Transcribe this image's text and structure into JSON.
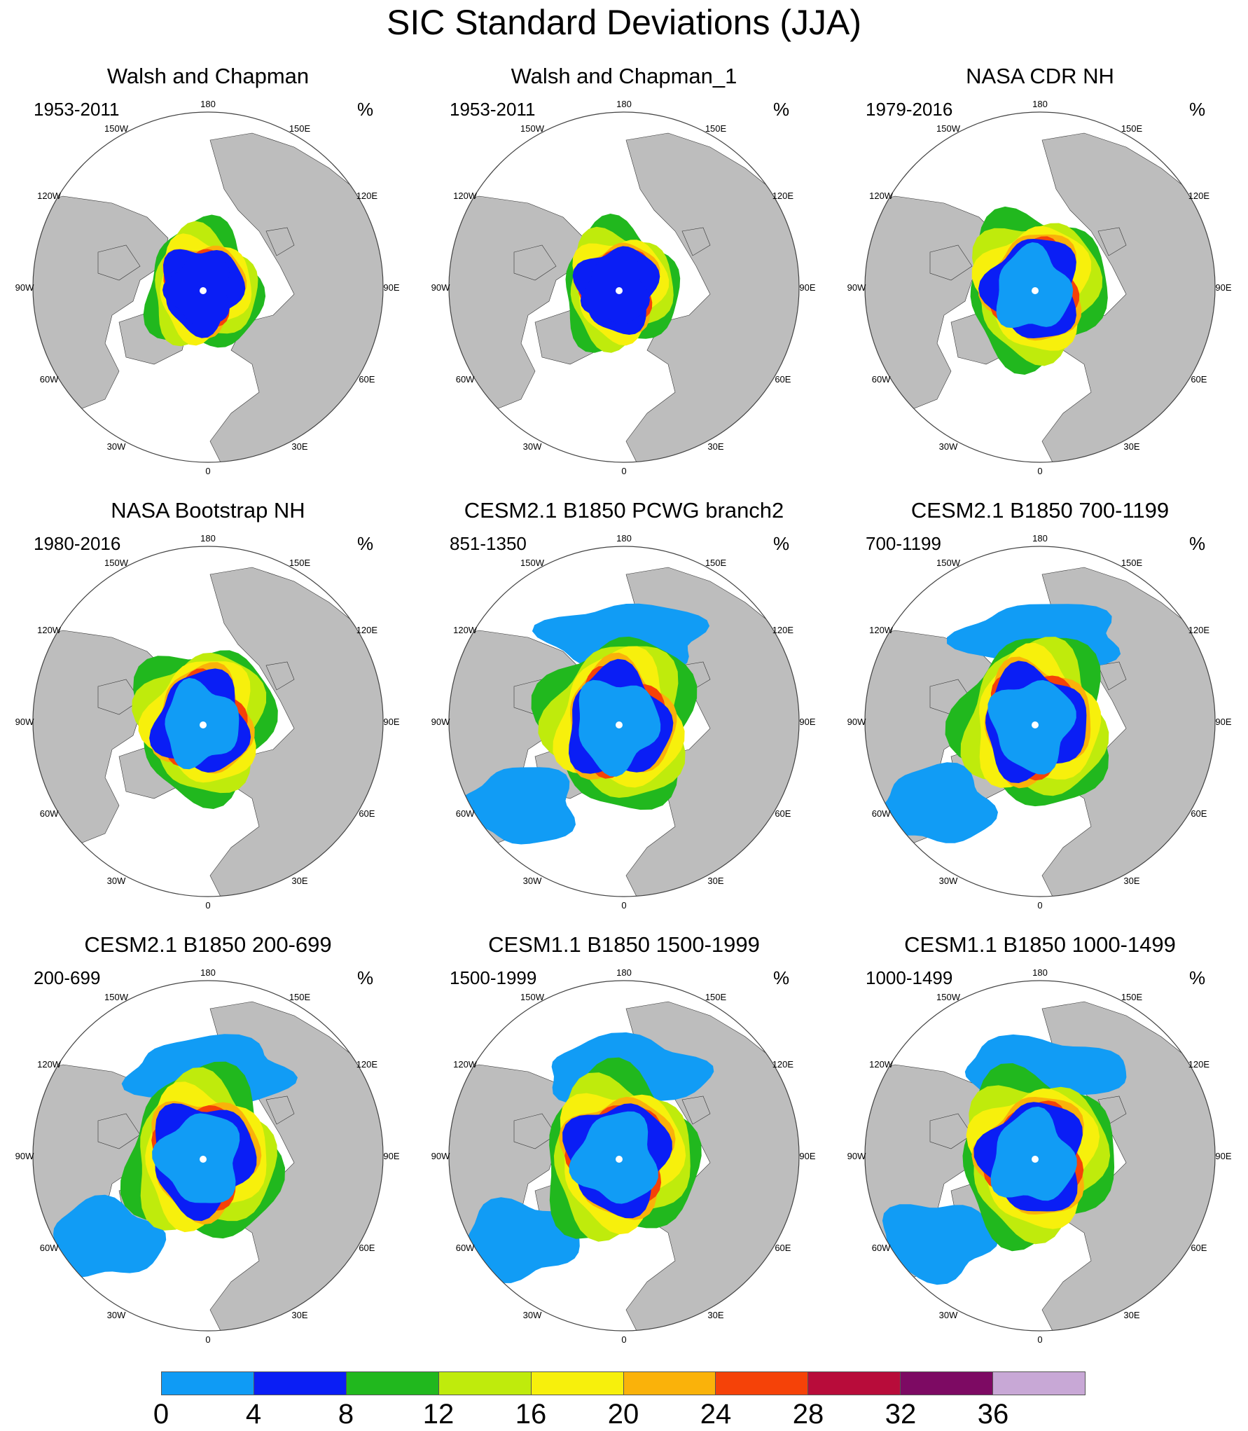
{
  "title": "SIC Standard Deviations (JJA)",
  "colors": {
    "land": "#bdbdbd",
    "ice_core": [
      "#0a1ef5",
      "#119cf5"
    ],
    "ring": [
      "#21b81e",
      "#bfeb0c",
      "#f7f00c",
      "#fab20a",
      "#f54208"
    ]
  },
  "longitude_labels": [
    "180",
    "150E",
    "120E",
    "90E",
    "60E",
    "30E",
    "0",
    "30W",
    "60W",
    "90W",
    "120W",
    "150W"
  ],
  "panels": [
    {
      "title": "Walsh and Chapman",
      "period": "1953-2011",
      "unit": "%",
      "style": "obs"
    },
    {
      "title": "Walsh and Chapman_1",
      "period": "1953-2011",
      "unit": "%",
      "style": "obs"
    },
    {
      "title": "NASA CDR NH",
      "period": "1979-2016",
      "unit": "%",
      "style": "sat"
    },
    {
      "title": "NASA Bootstrap NH",
      "period": "1980-2016",
      "unit": "%",
      "style": "sat"
    },
    {
      "title": "CESM2.1 B1850 PCWG branch2",
      "period": "851-1350",
      "unit": "%",
      "style": "model"
    },
    {
      "title": "CESM2.1 B1850 700-1199",
      "period": "700-1199",
      "unit": "%",
      "style": "model"
    },
    {
      "title": "CESM2.1 B1850 200-699",
      "period": "200-699",
      "unit": "%",
      "style": "model"
    },
    {
      "title": "CESM1.1 B1850 1500-1999",
      "period": "1500-1999",
      "unit": "%",
      "style": "model"
    },
    {
      "title": "CESM1.1 B1850 1000-1499",
      "period": "1000-1499",
      "unit": "%",
      "style": "model"
    }
  ],
  "colorbar": {
    "colors": [
      "#0f9bf5",
      "#0a1ef5",
      "#21b81e",
      "#bfeb0c",
      "#f7f00c",
      "#fab20a",
      "#f54208",
      "#b80c3a",
      "#7d0a63",
      "#c8a8d6"
    ],
    "labels": [
      "0",
      "4",
      "8",
      "12",
      "16",
      "20",
      "24",
      "28",
      "32",
      "36"
    ]
  }
}
